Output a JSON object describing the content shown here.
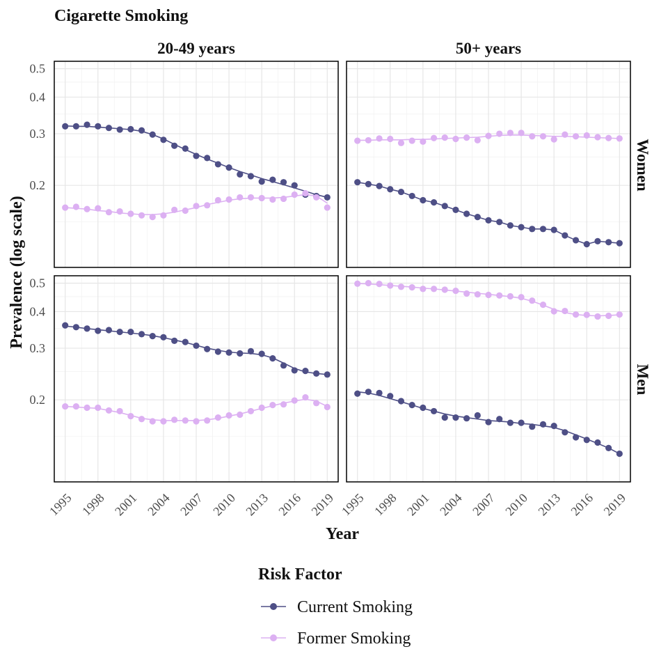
{
  "chart_data": {
    "type": "line",
    "title": "Cigarette Smoking",
    "xlabel": "Year",
    "ylabel": "Prevalence (log scale)",
    "y_scale": "log",
    "grid": true,
    "ylim": [
      0.105,
      0.53
    ],
    "xlim": [
      1994,
      2020
    ],
    "x_ticks": [
      1995,
      1998,
      2001,
      2004,
      2007,
      2010,
      2013,
      2016,
      2019
    ],
    "y_ticks": [
      0.2,
      0.3,
      0.4,
      0.5
    ],
    "y_tick_labels": [
      "0.2",
      "0.3",
      "0.4",
      "0.5"
    ],
    "legend": {
      "title": "Risk Factor",
      "position": "bottom",
      "entries": [
        "Current Smoking",
        "Former Smoking"
      ]
    },
    "colors": {
      "Current Smoking": "#4e4f86",
      "Former Smoking": "#dcb0f2"
    },
    "facet_columns": [
      "20-49 years",
      "50+ years"
    ],
    "facet_rows": [
      "Women",
      "Men"
    ],
    "years": [
      1995,
      1996,
      1997,
      1998,
      1999,
      2000,
      2001,
      2002,
      2003,
      2004,
      2005,
      2006,
      2007,
      2008,
      2009,
      2010,
      2011,
      2012,
      2013,
      2014,
      2015,
      2016,
      2017,
      2018,
      2019
    ],
    "panels": [
      {
        "column": "20-49 years",
        "row": "Women",
        "series": [
          {
            "name": "Current Smoking",
            "values": [
              0.318,
              0.318,
              0.322,
              0.318,
              0.314,
              0.31,
              0.311,
              0.308,
              0.298,
              0.286,
              0.273,
              0.267,
              0.252,
              0.248,
              0.236,
              0.23,
              0.218,
              0.215,
              0.206,
              0.209,
              0.205,
              0.2,
              0.186,
              0.184,
              0.182
            ],
            "trend": [
              0.319,
              0.318,
              0.318,
              0.316,
              0.314,
              0.312,
              0.31,
              0.306,
              0.298,
              0.288,
              0.276,
              0.265,
              0.255,
              0.246,
              0.238,
              0.23,
              0.223,
              0.217,
              0.211,
              0.206,
              0.201,
              0.196,
              0.191,
              0.186,
              0.182
            ]
          },
          {
            "name": "Former Smoking",
            "values": [
              0.168,
              0.169,
              0.166,
              0.167,
              0.162,
              0.163,
              0.16,
              0.158,
              0.156,
              0.158,
              0.165,
              0.164,
              0.17,
              0.171,
              0.178,
              0.179,
              0.182,
              0.182,
              0.181,
              0.179,
              0.18,
              0.186,
              0.188,
              0.182,
              0.168
            ],
            "trend": [
              0.168,
              0.167,
              0.166,
              0.164,
              0.163,
              0.161,
              0.16,
              0.159,
              0.159,
              0.16,
              0.162,
              0.165,
              0.168,
              0.172,
              0.175,
              0.178,
              0.18,
              0.181,
              0.181,
              0.181,
              0.182,
              0.184,
              0.186,
              0.184,
              0.174
            ]
          }
        ]
      },
      {
        "column": "50+ years",
        "row": "Women",
        "series": [
          {
            "name": "Current Smoking",
            "values": [
              0.205,
              0.202,
              0.199,
              0.194,
              0.19,
              0.184,
              0.178,
              0.175,
              0.17,
              0.165,
              0.16,
              0.156,
              0.152,
              0.15,
              0.146,
              0.144,
              0.142,
              0.142,
              0.141,
              0.135,
              0.13,
              0.126,
              0.129,
              0.128,
              0.127
            ]
          },
          {
            "name": "Former Smoking",
            "values": [
              0.284,
              0.285,
              0.289,
              0.288,
              0.279,
              0.284,
              0.282,
              0.29,
              0.291,
              0.288,
              0.291,
              0.285,
              0.295,
              0.3,
              0.302,
              0.302,
              0.294,
              0.294,
              0.287,
              0.298,
              0.294,
              0.296,
              0.292,
              0.29,
              0.289
            ],
            "trend": [
              0.285,
              0.285,
              0.286,
              0.286,
              0.286,
              0.287,
              0.287,
              0.288,
              0.289,
              0.29,
              0.291,
              0.292,
              0.294,
              0.296,
              0.297,
              0.297,
              0.296,
              0.295,
              0.294,
              0.294,
              0.293,
              0.292,
              0.291,
              0.29,
              0.289
            ]
          }
        ]
      },
      {
        "column": "20-49 years",
        "row": "Men",
        "series": [
          {
            "name": "Current Smoking",
            "values": [
              0.359,
              0.354,
              0.35,
              0.344,
              0.346,
              0.341,
              0.341,
              0.335,
              0.33,
              0.327,
              0.318,
              0.315,
              0.306,
              0.298,
              0.292,
              0.29,
              0.288,
              0.293,
              0.287,
              0.277,
              0.262,
              0.252,
              0.251,
              0.246,
              0.244
            ],
            "trend": [
              0.357,
              0.354,
              0.35,
              0.347,
              0.344,
              0.341,
              0.338,
              0.335,
              0.331,
              0.326,
              0.32,
              0.314,
              0.307,
              0.3,
              0.295,
              0.291,
              0.289,
              0.288,
              0.285,
              0.278,
              0.267,
              0.256,
              0.249,
              0.246,
              0.244
            ]
          },
          {
            "name": "Former Smoking",
            "values": [
              0.19,
              0.19,
              0.188,
              0.188,
              0.184,
              0.183,
              0.176,
              0.172,
              0.169,
              0.169,
              0.171,
              0.17,
              0.169,
              0.17,
              0.174,
              0.177,
              0.178,
              0.183,
              0.188,
              0.192,
              0.193,
              0.199,
              0.204,
              0.195,
              0.189
            ],
            "trend": [
              0.19,
              0.189,
              0.188,
              0.187,
              0.184,
              0.181,
              0.177,
              0.173,
              0.171,
              0.17,
              0.17,
              0.17,
              0.17,
              0.171,
              0.173,
              0.176,
              0.179,
              0.183,
              0.187,
              0.191,
              0.195,
              0.198,
              0.201,
              0.198,
              0.19
            ]
          }
        ]
      },
      {
        "column": "50+ years",
        "row": "Men",
        "series": [
          {
            "name": "Current Smoking",
            "values": [
              0.21,
              0.213,
              0.211,
              0.206,
              0.198,
              0.192,
              0.188,
              0.183,
              0.174,
              0.174,
              0.173,
              0.177,
              0.168,
              0.172,
              0.167,
              0.167,
              0.162,
              0.165,
              0.163,
              0.155,
              0.149,
              0.146,
              0.143,
              0.137,
              0.131
            ],
            "trend": [
              0.213,
              0.211,
              0.207,
              0.202,
              0.197,
              0.192,
              0.187,
              0.183,
              0.179,
              0.176,
              0.174,
              0.172,
              0.17,
              0.169,
              0.168,
              0.166,
              0.165,
              0.163,
              0.161,
              0.157,
              0.152,
              0.147,
              0.142,
              0.137,
              0.131
            ]
          },
          {
            "name": "Former Smoking",
            "values": [
              0.498,
              0.5,
              0.497,
              0.491,
              0.486,
              0.484,
              0.478,
              0.478,
              0.475,
              0.471,
              0.461,
              0.458,
              0.456,
              0.454,
              0.451,
              0.448,
              0.436,
              0.422,
              0.401,
              0.402,
              0.391,
              0.39,
              0.385,
              0.387,
              0.391
            ],
            "trend": [
              0.499,
              0.497,
              0.494,
              0.491,
              0.488,
              0.485,
              0.481,
              0.478,
              0.474,
              0.47,
              0.466,
              0.462,
              0.458,
              0.454,
              0.45,
              0.444,
              0.434,
              0.421,
              0.407,
              0.397,
              0.391,
              0.388,
              0.387,
              0.388,
              0.39
            ]
          }
        ]
      }
    ]
  }
}
